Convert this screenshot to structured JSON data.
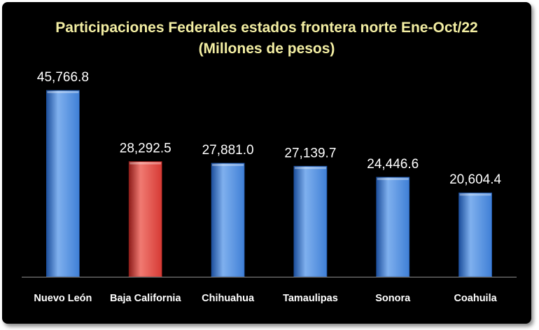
{
  "chart_data": {
    "type": "bar",
    "title": "Participaciones Federales estados frontera norte Ene-Oct/22",
    "subtitle": "(Millones de pesos)",
    "categories": [
      "Nuevo León",
      "Baja California",
      "Chihuahua",
      "Tamaulipas",
      "Sonora",
      "Coahuila"
    ],
    "values": [
      45766.8,
      28292.5,
      27881.0,
      27139.7,
      24446.6,
      20604.4
    ],
    "value_labels": [
      "45,766.8",
      "28,292.5",
      "27,881.0",
      "27,139.7",
      "24,446.6",
      "20,604.4"
    ],
    "highlight_category": "Baja California",
    "xlabel": "",
    "ylabel": "",
    "ylim": [
      0,
      45766.8
    ],
    "grid": false,
    "legend": "none",
    "colors": {
      "background": "#000000",
      "bar": "#3f7fd6",
      "bar_light": "#7fb0ee",
      "bar_dark": "#1d4f9c",
      "highlight": "#d63a35",
      "highlight_light": "#f07a72",
      "highlight_dark": "#8e1d1a",
      "title": "#f3eea3",
      "labels": "#ffffff",
      "axis": "#8c8c8c"
    }
  }
}
